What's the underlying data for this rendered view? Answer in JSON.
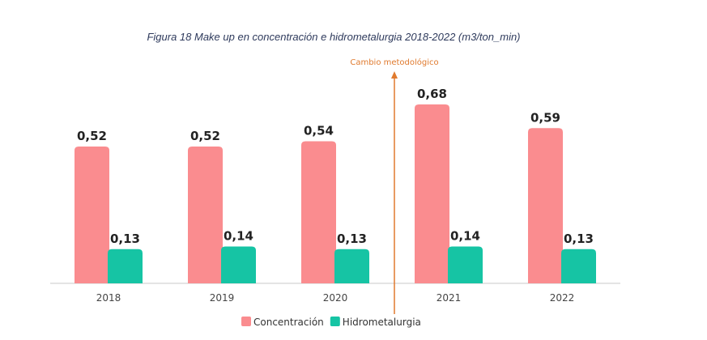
{
  "chart_data": {
    "type": "bar",
    "title": "Figura 18 Make up en concentración e hidrometalurgia 2018-2022 (m3/ton_min)",
    "categories": [
      "2018",
      "2019",
      "2020",
      "2021",
      "2022"
    ],
    "series": [
      {
        "name": "Concentración",
        "values": [
          0.52,
          0.52,
          0.54,
          0.68,
          0.59
        ],
        "labels": [
          "0,52",
          "0,52",
          "0,54",
          "0,68",
          "0,59"
        ],
        "color": "#fa8c8f"
      },
      {
        "name": "Hidrometalurgia",
        "values": [
          0.13,
          0.14,
          0.13,
          0.14,
          0.13
        ],
        "labels": [
          "0,13",
          "0,14",
          "0,13",
          "0,14",
          "0,13"
        ],
        "color": "#16c4a4"
      }
    ],
    "ylim": [
      0,
      0.8
    ],
    "grid": false,
    "legend_position": "bottom",
    "annotation": {
      "text": "Cambio metodológico",
      "color": "#e07a2e",
      "between": [
        "2020",
        "2021"
      ]
    }
  }
}
